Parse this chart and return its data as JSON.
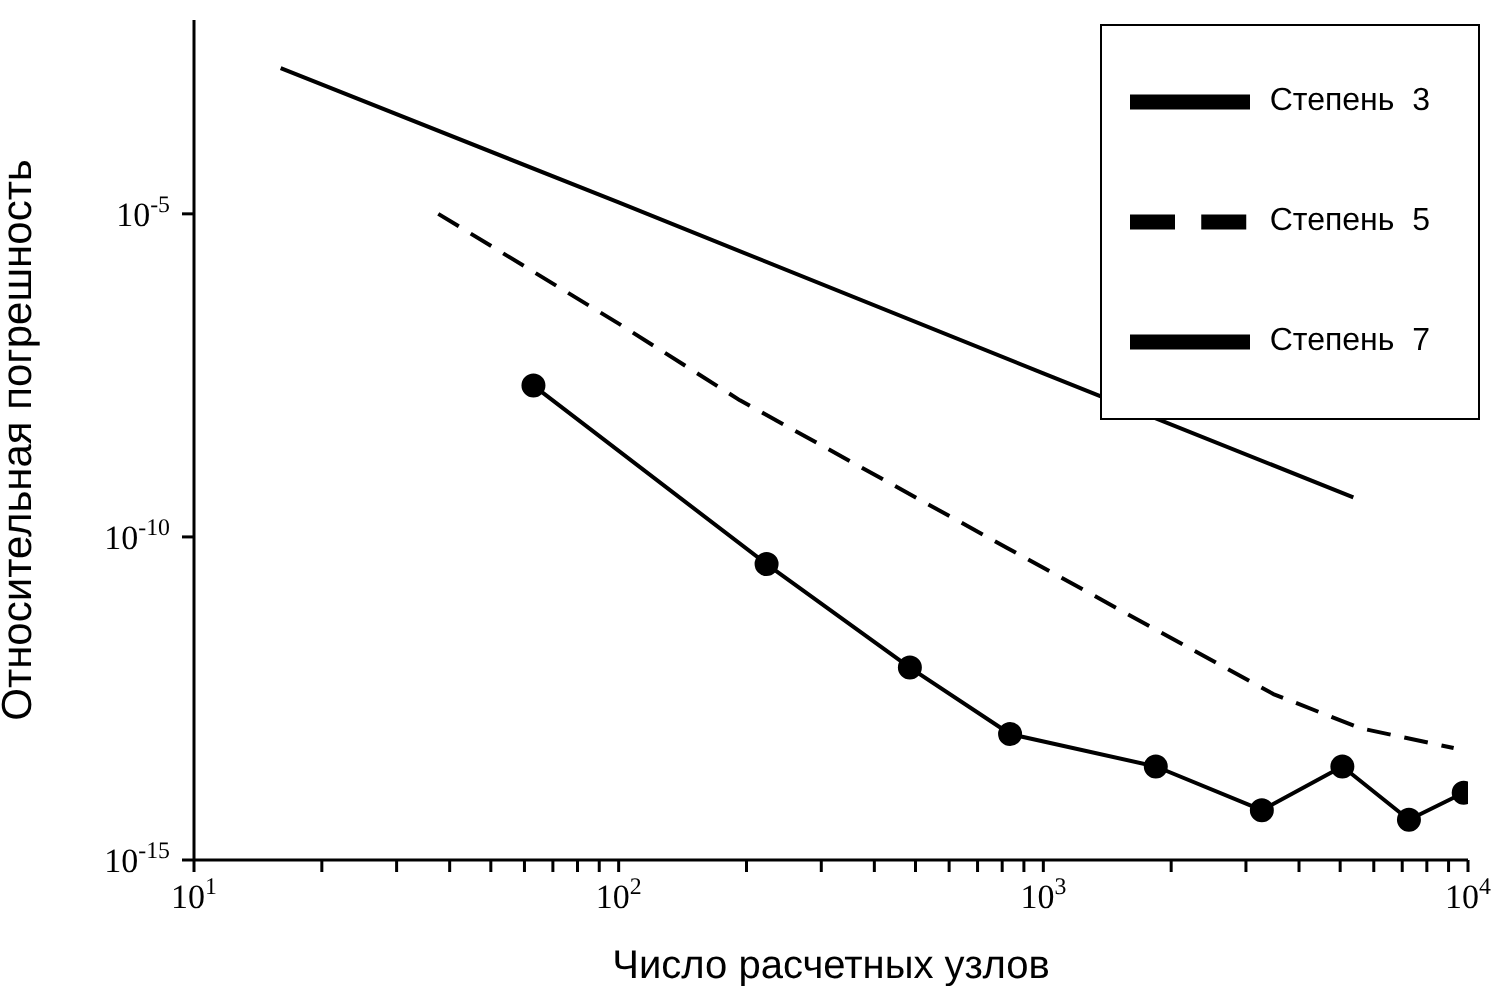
{
  "chart_data": {
    "type": "line",
    "xlabel": "Число расчетных узлов",
    "ylabel": "Относительная погрешность",
    "log": "xy",
    "xlim": [
      10,
      10000
    ],
    "ylim": [
      1e-15,
      0.01
    ],
    "xticks": [
      {
        "value": 10,
        "label": "10$^{1}$"
      },
      {
        "value": 20,
        "label": null
      },
      {
        "value": 30,
        "label": null
      },
      {
        "value": 40,
        "label": null
      },
      {
        "value": 50,
        "label": null
      },
      {
        "value": 60,
        "label": null
      },
      {
        "value": 70,
        "label": null
      },
      {
        "value": 80,
        "label": null
      },
      {
        "value": 90,
        "label": null
      },
      {
        "value": 100,
        "label": "10$^{2}$"
      },
      {
        "value": 200,
        "label": null
      },
      {
        "value": 300,
        "label": null
      },
      {
        "value": 400,
        "label": null
      },
      {
        "value": 500,
        "label": null
      },
      {
        "value": 600,
        "label": null
      },
      {
        "value": 700,
        "label": null
      },
      {
        "value": 800,
        "label": null
      },
      {
        "value": 900,
        "label": null
      },
      {
        "value": 1000,
        "label": "10$^{3}$"
      },
      {
        "value": 2000,
        "label": null
      },
      {
        "value": 3000,
        "label": null
      },
      {
        "value": 4000,
        "label": null
      },
      {
        "value": 5000,
        "label": null
      },
      {
        "value": 6000,
        "label": null
      },
      {
        "value": 7000,
        "label": null
      },
      {
        "value": 8000,
        "label": null
      },
      {
        "value": 9000,
        "label": null
      },
      {
        "value": 10000,
        "label": "10$^{4}$"
      }
    ],
    "yticks": [
      {
        "value": 1e-15,
        "label": "10$^{-15}$"
      },
      {
        "value": 1e-10,
        "label": "10$^{-10}$"
      },
      {
        "value": 1e-05,
        "label": "10$^{-5}$"
      }
    ],
    "grid": false,
    "legend": "top right",
    "series": [
      {
        "name": "Степень  3",
        "color": "#000000",
        "line_style": "solid",
        "marker": "none",
        "x": [
          16,
          100,
          1000,
          5370
        ],
        "values": [
          0.0018,
          1.5e-05,
          3.4e-08,
          4.1e-10
        ]
      },
      {
        "name": "Степень  5",
        "color": "#000000",
        "line_style": "dashed",
        "marker": "none",
        "x": [
          37.6,
          100,
          193,
          820,
          3480,
          5570,
          9250
        ],
        "values": [
          1e-05,
          2e-07,
          1.3e-08,
          6.8e-11,
          3.7e-13,
          1.1e-13,
          5.4e-14
        ]
      },
      {
        "name": "Степень  7",
        "color": "#000000",
        "line_style": "solid",
        "marker": "circle",
        "x": [
          63,
          223,
          485,
          835,
          1840,
          3270,
          5060,
          7260,
          9770
        ],
        "values": [
          2.2e-08,
          3.8e-11,
          9.5e-13,
          8.9e-14,
          2.8e-14,
          5.9e-15,
          2.8e-14,
          4.2e-15,
          1.1e-14
        ]
      }
    ]
  }
}
